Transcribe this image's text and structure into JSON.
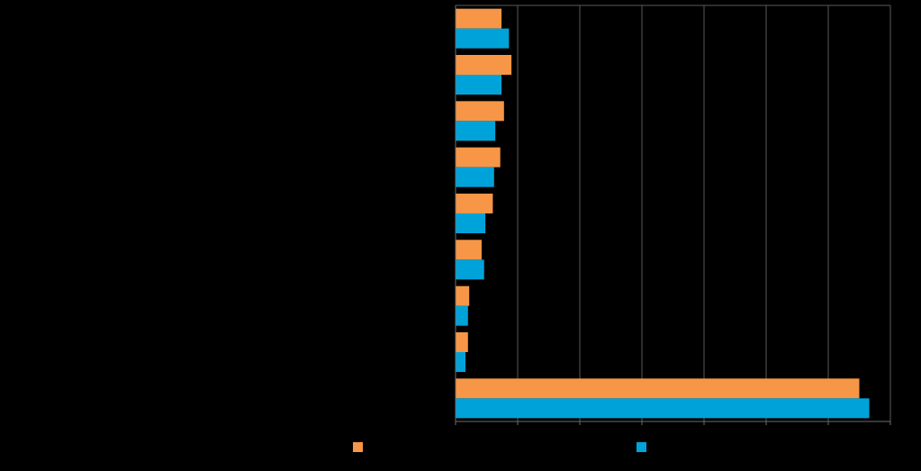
{
  "chart_data": {
    "type": "bar",
    "orientation": "horizontal",
    "categories": [
      "",
      "",
      "",
      "",
      "",
      "",
      "",
      "",
      ""
    ],
    "series": [
      {
        "color": "#f79646",
        "values": [
          3.7,
          4.5,
          3.9,
          3.6,
          3.0,
          2.1,
          1.1,
          1.0,
          32.5
        ]
      },
      {
        "color": "#00a3d9",
        "values": [
          4.3,
          3.7,
          3.2,
          3.1,
          2.4,
          2.3,
          1.0,
          0.8,
          33.3
        ]
      }
    ],
    "xlim": [
      0,
      35
    ],
    "grid": true,
    "legend": "bottom",
    "colors": {
      "background": "#000000",
      "gridline": "#5a5a5a",
      "axis": "#6e6e6e"
    }
  }
}
